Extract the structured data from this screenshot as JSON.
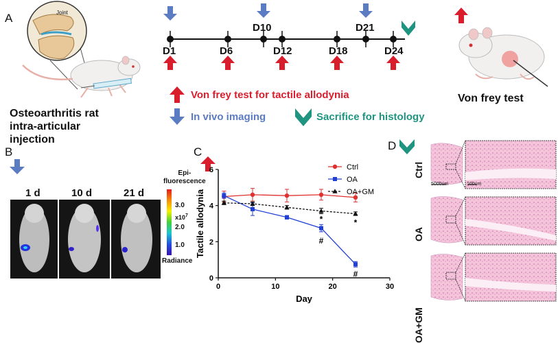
{
  "panelA": {
    "letter": "A",
    "joint_label": "Joint",
    "rat_caption": [
      "Osteoarthritis rat",
      "intra-articular",
      "injection"
    ],
    "timeline": {
      "days_bottom": [
        "D1",
        "D6",
        "D12",
        "D18",
        "D24"
      ],
      "days_top": [
        "D10",
        "D21"
      ]
    },
    "legend": {
      "von_frey": "Von frey test for tactile allodynia",
      "imaging": "In vivo imaging",
      "sacrifice": "Sacrifice for histology"
    },
    "von_frey_caption": "Von frey test",
    "colors": {
      "red_arrow": "#d81e2c",
      "blue_arrow": "#5b7bc2",
      "teal": "#1f9480"
    }
  },
  "panelB": {
    "letter": "B",
    "labels": [
      "1 d",
      "10 d",
      "21 d"
    ],
    "scale_title": [
      "Epi-",
      "fluorescence"
    ],
    "scale_ticks": [
      "3.0",
      "2.0",
      "1.0"
    ],
    "scale_multiplier": "x10",
    "scale_exponent": "7",
    "scale_footer": "Radiance"
  },
  "panelC": {
    "letter": "C",
    "chart_data": {
      "type": "line",
      "xlabel": "Day",
      "ylabel": "Tactile allodynia",
      "xlim": [
        0,
        30
      ],
      "ylim": [
        0,
        6
      ],
      "xticks": [
        0,
        10,
        20,
        30
      ],
      "yticks": [
        0,
        2,
        4,
        6
      ],
      "legend_position": "top-right",
      "series": [
        {
          "name": "Ctrl",
          "color": "#e0302f",
          "marker": "circle",
          "dash": false,
          "x": [
            1,
            6,
            12,
            18,
            24
          ],
          "y": [
            4.5,
            4.6,
            4.55,
            4.6,
            4.45
          ],
          "err": [
            0.3,
            0.35,
            0.35,
            0.3,
            0.25
          ]
        },
        {
          "name": "OA",
          "color": "#1f3fd6",
          "marker": "square",
          "dash": false,
          "x": [
            1,
            6,
            12,
            18,
            24
          ],
          "y": [
            4.55,
            3.8,
            3.35,
            2.75,
            0.75
          ],
          "err": [
            0.15,
            0.35,
            0.1,
            0.2,
            0.15
          ]
        },
        {
          "name": "OA+GM",
          "color": "#111111",
          "marker": "triangle",
          "dash": true,
          "x": [
            1,
            6,
            12,
            18,
            24
          ],
          "y": [
            4.15,
            4.1,
            3.9,
            3.7,
            3.55
          ],
          "err": [
            0.1,
            0.1,
            0.1,
            0.15,
            0.1
          ]
        }
      ],
      "annotations": [
        {
          "text": "*",
          "x": 18,
          "y": 3.25
        },
        {
          "text": "*",
          "x": 24,
          "y": 3.05
        },
        {
          "text": "#",
          "x": 18,
          "y": 2.05
        },
        {
          "text": "#",
          "x": 24,
          "y": 0.2
        }
      ]
    }
  },
  "panelD": {
    "letter": "D",
    "rows": [
      "Ctrl",
      "OA",
      "OA+GM"
    ],
    "scale_bar_low": "5000um",
    "scale_bar_high": "100um"
  }
}
